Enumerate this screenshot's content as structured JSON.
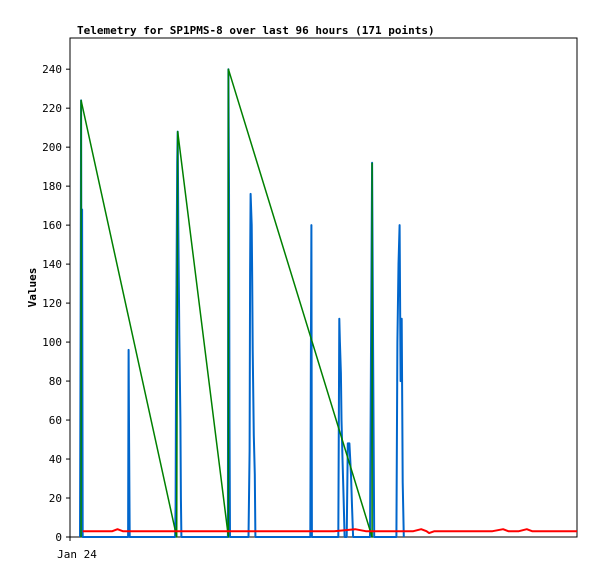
{
  "chart_data": {
    "type": "line",
    "title": "Telemetry for SP1PMS-8 over last 96 hours (171 points)",
    "ylabel": "Values",
    "xlabel": "",
    "x_tick_labels": [
      "Jan 24"
    ],
    "ylim": [
      0,
      256
    ],
    "yticks": [
      0,
      20,
      40,
      60,
      80,
      100,
      120,
      140,
      160,
      180,
      200,
      220,
      240
    ],
    "xlim": [
      0,
      96
    ],
    "grid": false,
    "colors": {
      "series1": "#0066cc",
      "series2": "#008000",
      "series3": "#ff0000"
    },
    "series": [
      {
        "points": [
          [
            1.9,
            0
          ],
          [
            2.0,
            112
          ],
          [
            2.1,
            224
          ],
          [
            2.2,
            56
          ],
          [
            2.3,
            168
          ],
          [
            2.4,
            0
          ],
          [
            11.0,
            0
          ],
          [
            11.1,
            96
          ],
          [
            11.2,
            48
          ],
          [
            11.3,
            0
          ],
          [
            19.9,
            0
          ],
          [
            20.0,
            16
          ],
          [
            20.1,
            104
          ],
          [
            20.3,
            192
          ],
          [
            20.4,
            208
          ],
          [
            20.5,
            160
          ],
          [
            20.7,
            104
          ],
          [
            20.9,
            60
          ],
          [
            21.0,
            20
          ],
          [
            21.1,
            0
          ],
          [
            29.9,
            0
          ],
          [
            30.0,
            240
          ],
          [
            30.1,
            180
          ],
          [
            30.2,
            60
          ],
          [
            30.3,
            0
          ],
          [
            33.8,
            0
          ],
          [
            34.0,
            44
          ],
          [
            34.1,
            136
          ],
          [
            34.2,
            176
          ],
          [
            34.4,
            160
          ],
          [
            34.5,
            132
          ],
          [
            34.6,
            96
          ],
          [
            34.8,
            52
          ],
          [
            35.0,
            32
          ],
          [
            35.1,
            0
          ],
          [
            45.5,
            0
          ],
          [
            45.6,
            80
          ],
          [
            45.7,
            160
          ],
          [
            45.8,
            0
          ],
          [
            50.8,
            0
          ],
          [
            51.0,
            112
          ],
          [
            51.1,
            100
          ],
          [
            51.3,
            84
          ],
          [
            51.4,
            60
          ],
          [
            51.6,
            40
          ],
          [
            51.8,
            20
          ],
          [
            52.0,
            0
          ],
          [
            52.4,
            0
          ],
          [
            52.6,
            48
          ],
          [
            52.9,
            48
          ],
          [
            53.2,
            32
          ],
          [
            53.4,
            16
          ],
          [
            53.6,
            0
          ],
          [
            56.8,
            0
          ],
          [
            57.0,
            96
          ],
          [
            57.2,
            192
          ],
          [
            57.4,
            96
          ],
          [
            57.6,
            0
          ],
          [
            61.8,
            0
          ],
          [
            62.0,
            100
          ],
          [
            62.2,
            140
          ],
          [
            62.4,
            160
          ],
          [
            62.6,
            80
          ],
          [
            62.8,
            112
          ],
          [
            63.0,
            28
          ],
          [
            63.2,
            0
          ]
        ]
      },
      {
        "points": [
          [
            2.1,
            0
          ],
          [
            2.1,
            224
          ],
          [
            20.2,
            0
          ],
          [
            20.4,
            208
          ],
          [
            30.0,
            0
          ],
          [
            30.0,
            240
          ],
          [
            57.2,
            0
          ],
          [
            57.2,
            192
          ]
        ]
      },
      {
        "points": [
          [
            2.4,
            3
          ],
          [
            8.0,
            3
          ],
          [
            9.0,
            4
          ],
          [
            10.0,
            3
          ],
          [
            20.0,
            3
          ],
          [
            30.0,
            3
          ],
          [
            40.0,
            3
          ],
          [
            50.0,
            3
          ],
          [
            54.0,
            4
          ],
          [
            56.0,
            3
          ],
          [
            65.0,
            3
          ],
          [
            66.5,
            4
          ],
          [
            67.5,
            3
          ],
          [
            68.0,
            2
          ],
          [
            69.0,
            3
          ],
          [
            80.0,
            3
          ],
          [
            82.0,
            4
          ],
          [
            83.0,
            3
          ],
          [
            85.0,
            3
          ],
          [
            86.5,
            4
          ],
          [
            87.5,
            3
          ],
          [
            96.0,
            3
          ]
        ]
      }
    ]
  }
}
